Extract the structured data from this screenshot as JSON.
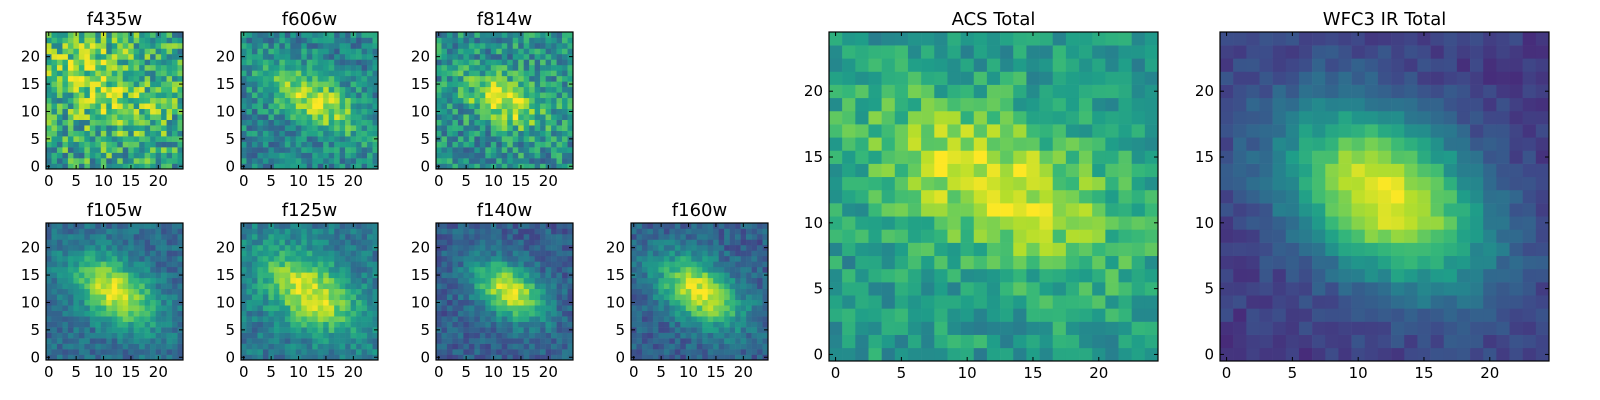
{
  "colormap": "viridis",
  "pixel_grid": {
    "rows": 25,
    "cols": 25
  },
  "chart_data": [
    {
      "type": "heatmap",
      "title": "f435w",
      "xticks": [
        0,
        5,
        10,
        15,
        20
      ],
      "yticks": [
        0,
        5,
        10,
        15,
        20
      ],
      "xlim": [
        -0.5,
        24.5
      ],
      "ylim": [
        -0.5,
        24.5
      ],
      "peak": [
        10,
        15
      ],
      "spread": [
        8,
        5
      ],
      "angle_deg": -30,
      "noise": 0.55,
      "base": 0.58,
      "amp": 0.25,
      "seed": 11
    },
    {
      "type": "heatmap",
      "title": "f606w",
      "xticks": [
        0,
        5,
        10,
        15,
        20
      ],
      "yticks": [
        0,
        5,
        10,
        15,
        20
      ],
      "xlim": [
        -0.5,
        24.5
      ],
      "ylim": [
        -0.5,
        24.5
      ],
      "peak": [
        13,
        12
      ],
      "spread": [
        7,
        3
      ],
      "angle_deg": -30,
      "noise": 0.35,
      "base": 0.45,
      "amp": 0.45,
      "seed": 22
    },
    {
      "type": "heatmap",
      "title": "f814w",
      "xticks": [
        0,
        5,
        10,
        15,
        20
      ],
      "yticks": [
        0,
        5,
        10,
        15,
        20
      ],
      "xlim": [
        -0.5,
        24.5
      ],
      "ylim": [
        -0.5,
        24.5
      ],
      "peak": [
        12,
        12
      ],
      "spread": [
        5,
        3
      ],
      "angle_deg": -25,
      "noise": 0.45,
      "base": 0.5,
      "amp": 0.45,
      "seed": 33
    },
    {
      "type": "heatmap",
      "title": "f105w",
      "xticks": [
        0,
        5,
        10,
        15,
        20
      ],
      "yticks": [
        0,
        5,
        10,
        15,
        20
      ],
      "xlim": [
        -0.5,
        24.5
      ],
      "ylim": [
        -0.5,
        24.5
      ],
      "peak": [
        12,
        12
      ],
      "spread": [
        6,
        3.5
      ],
      "angle_deg": -35,
      "noise": 0.22,
      "base": 0.35,
      "amp": 0.6,
      "seed": 44
    },
    {
      "type": "heatmap",
      "title": "f125w",
      "xticks": [
        0,
        5,
        10,
        15,
        20
      ],
      "yticks": [
        0,
        5,
        10,
        15,
        20
      ],
      "xlim": [
        -0.5,
        24.5
      ],
      "ylim": [
        -0.5,
        24.5
      ],
      "peak": [
        12,
        12
      ],
      "spread": [
        7,
        4
      ],
      "angle_deg": -35,
      "noise": 0.25,
      "base": 0.4,
      "amp": 0.55,
      "seed": 55
    },
    {
      "type": "heatmap",
      "title": "f140w",
      "xticks": [
        0,
        5,
        10,
        15,
        20
      ],
      "yticks": [
        0,
        5,
        10,
        15,
        20
      ],
      "xlim": [
        -0.5,
        24.5
      ],
      "ylim": [
        -0.5,
        24.5
      ],
      "peak": [
        13,
        12
      ],
      "spread": [
        5,
        3
      ],
      "angle_deg": -35,
      "noise": 0.22,
      "base": 0.3,
      "amp": 0.65,
      "seed": 66
    },
    {
      "type": "heatmap",
      "title": "f160w",
      "xticks": [
        0,
        5,
        10,
        15,
        20
      ],
      "yticks": [
        0,
        5,
        10,
        15,
        20
      ],
      "xlim": [
        -0.5,
        24.5
      ],
      "ylim": [
        -0.5,
        24.5
      ],
      "peak": [
        12,
        12
      ],
      "spread": [
        6,
        3.5
      ],
      "angle_deg": -35,
      "noise": 0.22,
      "base": 0.3,
      "amp": 0.65,
      "seed": 77
    },
    {
      "type": "heatmap",
      "title": "ACS Total",
      "xticks": [
        0,
        5,
        10,
        15,
        20
      ],
      "yticks": [
        0,
        5,
        10,
        15,
        20
      ],
      "xlim": [
        -0.5,
        24.5
      ],
      "ylim": [
        -0.5,
        24.5
      ],
      "peak": [
        12,
        13
      ],
      "spread": [
        7,
        3.5
      ],
      "angle_deg": -25,
      "noise": 0.28,
      "base": 0.55,
      "amp": 0.4,
      "seed": 88
    },
    {
      "type": "heatmap",
      "title": "WFC3 IR Total",
      "xticks": [
        0,
        5,
        10,
        15,
        20
      ],
      "yticks": [
        0,
        5,
        10,
        15,
        20
      ],
      "xlim": [
        -0.5,
        24.5
      ],
      "ylim": [
        -0.5,
        24.5
      ],
      "peak": [
        12,
        12
      ],
      "spread": [
        6,
        4
      ],
      "angle_deg": -35,
      "noise": 0.12,
      "base": 0.18,
      "amp": 0.8,
      "seed": 99
    }
  ]
}
